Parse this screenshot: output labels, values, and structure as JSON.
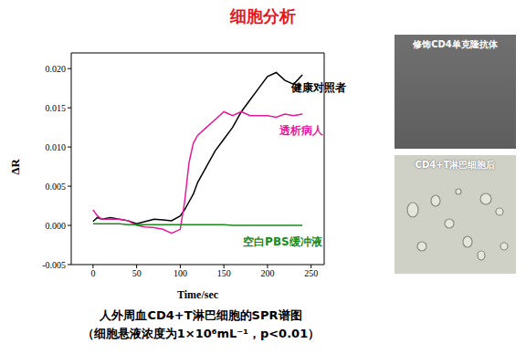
{
  "chart_data": {
    "type": "line",
    "title": "细胞分析",
    "x_label": "Time/sec",
    "y_label": "ΔR",
    "caption": [
      "人外周血CD4+T淋巴细胞的SPR谱图",
      "（细胞悬液浓度为1×10⁶mL⁻¹，p<0.01）"
    ],
    "x": [
      0,
      5,
      10,
      20,
      30,
      40,
      50,
      60,
      70,
      80,
      90,
      100,
      105,
      110,
      115,
      120,
      130,
      140,
      150,
      160,
      170,
      180,
      190,
      200,
      210,
      220,
      230,
      240
    ],
    "series": [
      {
        "name": "健康对照者",
        "color": "#000000",
        "values": [
          0.0005,
          0.001,
          0.0008,
          0.001,
          0.0008,
          0.0006,
          0.0002,
          0.0005,
          0.0008,
          0.0007,
          0.0006,
          0.0012,
          0.002,
          0.003,
          0.004,
          0.0055,
          0.0075,
          0.0095,
          0.011,
          0.0125,
          0.0145,
          0.016,
          0.0175,
          0.019,
          0.0195,
          0.0185,
          0.018,
          0.0192
        ]
      },
      {
        "name": "透析病人",
        "color": "#e6199b",
        "values": [
          0.002,
          0.0012,
          0.0008,
          0.0008,
          0.0008,
          0.0006,
          0.0,
          -0.0002,
          -0.0003,
          -0.0005,
          -0.001,
          -0.0005,
          0.003,
          0.008,
          0.0105,
          0.0115,
          0.0125,
          0.0135,
          0.0145,
          0.014,
          0.0145,
          0.014,
          0.014,
          0.014,
          0.0138,
          0.0142,
          0.014,
          0.0142
        ]
      },
      {
        "name": "空白PBS缓冲液",
        "color": "#1a8a1a",
        "values": [
          0.0002,
          0.0002,
          0.0002,
          0.0002,
          0.0002,
          0.0001,
          0.0001,
          0.0001,
          0.0001,
          0.0001,
          0.0001,
          0.0001,
          0.0001,
          0.0001,
          0.0001,
          0.0001,
          0.0001,
          0.0001,
          0.0001,
          0.0,
          0.0,
          0.0,
          0.0,
          0.0,
          0.0,
          0.0,
          0.0,
          0.0
        ]
      }
    ],
    "xlim": [
      -25,
      265
    ],
    "xticks": [
      0,
      50,
      100,
      150,
      200,
      250
    ],
    "ylim": [
      -0.005,
      0.022
    ],
    "yticks": [
      {
        "value": -0.005,
        "label": "-0.005"
      },
      {
        "value": 0,
        "label": "0.000"
      },
      {
        "value": 0.005,
        "label": "0.005"
      },
      {
        "value": 0.01,
        "label": "0.010"
      },
      {
        "value": 0.015,
        "label": "0.015"
      },
      {
        "value": 0.02,
        "label": "0.020"
      }
    ],
    "grid": false
  },
  "images": [
    {
      "caption": "修饰CD4单克隆抗体"
    },
    {
      "caption": "CD4+T淋巴细胞后"
    }
  ]
}
